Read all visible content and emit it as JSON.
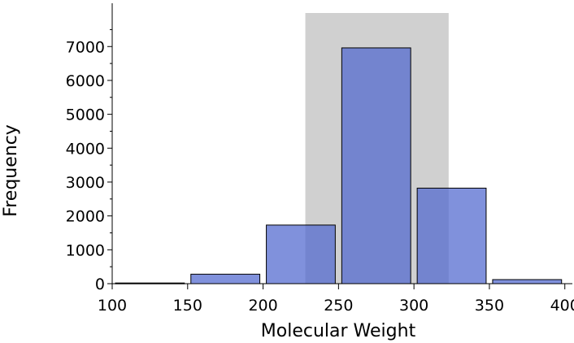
{
  "chart_data": {
    "type": "bar",
    "xlabel": "Molecular Weight",
    "ylabel": "Frequency",
    "xlim": [
      100,
      405
    ],
    "ylim": [
      0,
      7990
    ],
    "x_ticks": [
      100,
      150,
      200,
      250,
      300,
      350,
      400
    ],
    "y_ticks": [
      0,
      1000,
      2000,
      3000,
      4000,
      5000,
      6000,
      7000
    ],
    "bins": [
      {
        "start": 100,
        "end": 150,
        "count": 20
      },
      {
        "start": 150,
        "end": 200,
        "count": 280
      },
      {
        "start": 200,
        "end": 250,
        "count": 1730
      },
      {
        "start": 250,
        "end": 300,
        "count": 6960
      },
      {
        "start": 300,
        "end": 350,
        "count": 2820
      },
      {
        "start": 350,
        "end": 400,
        "count": 120
      }
    ],
    "highlight_range": [
      228,
      323
    ],
    "colors": {
      "bar_fill": "#4f66cf",
      "bar_stroke": "#000000",
      "highlight": "#c8c8c8"
    }
  }
}
